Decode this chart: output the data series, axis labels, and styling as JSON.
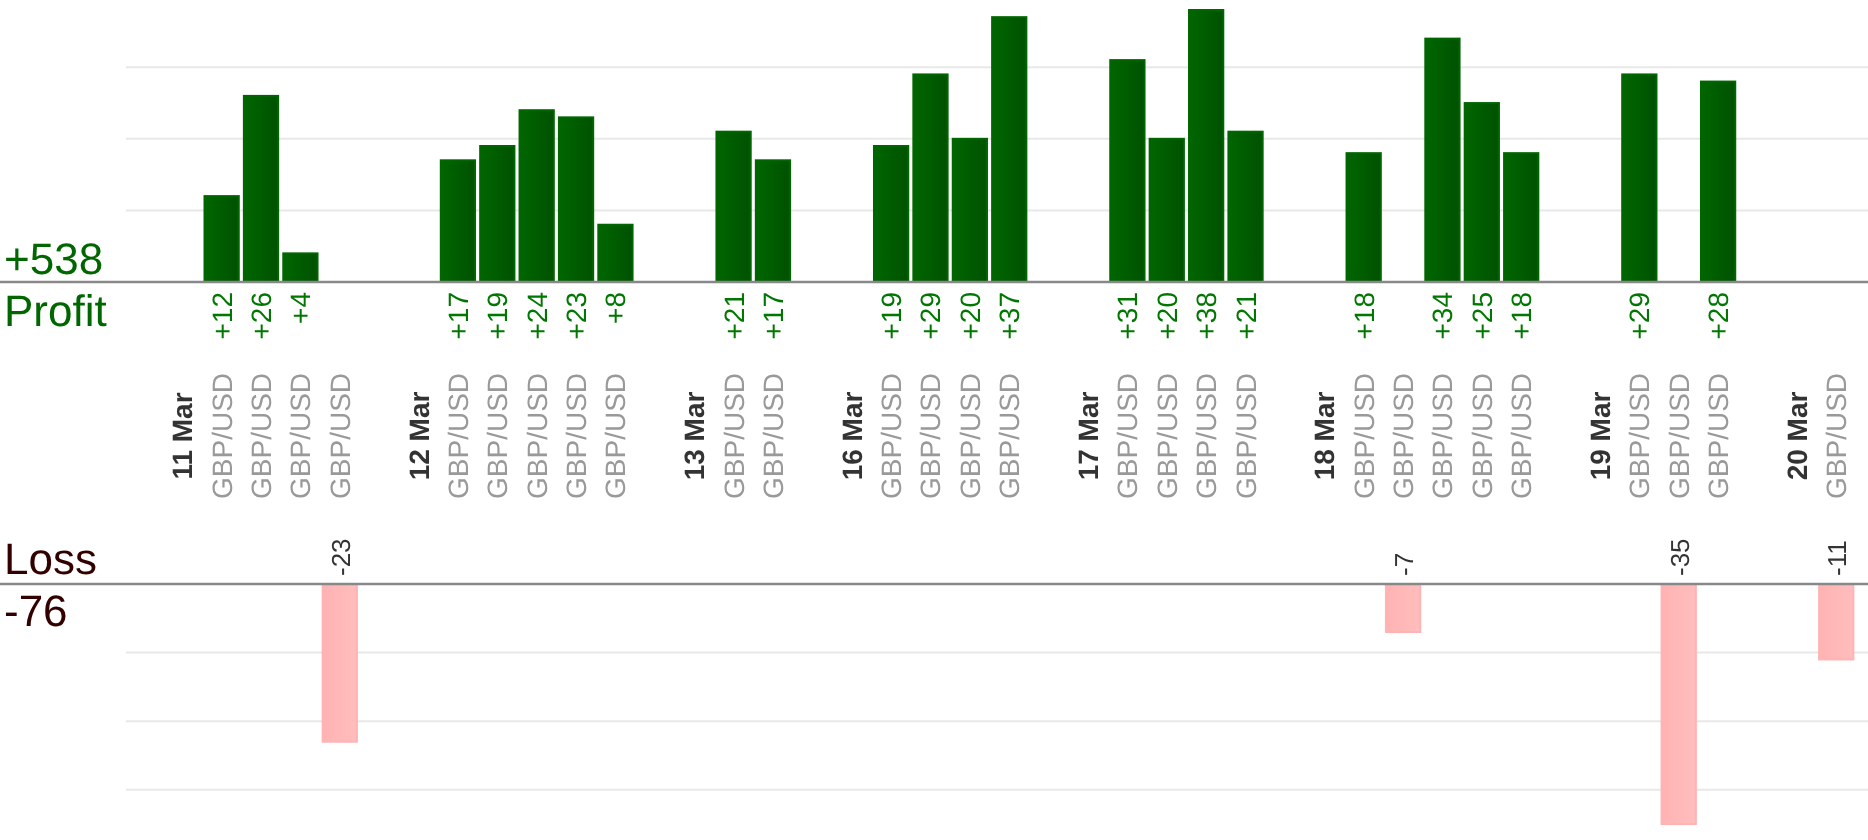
{
  "chart_data": [
    {
      "type": "bar",
      "ylabel": "Profit",
      "annotations": [
        "+538"
      ],
      "categories": [
        "11 Mar",
        "GBP/USD",
        "GBP/USD",
        "GBP/USD",
        "GBP/USD",
        null,
        "12 Mar",
        "GBP/USD",
        "GBP/USD",
        "GBP/USD",
        "GBP/USD",
        "GBP/USD",
        null,
        "13 Mar",
        "GBP/USD",
        "GBP/USD",
        null,
        "16 Mar",
        "GBP/USD",
        "GBP/USD",
        "GBP/USD",
        "GBP/USD",
        null,
        "17 Mar",
        "GBP/USD",
        "GBP/USD",
        "GBP/USD",
        "GBP/USD",
        null,
        "18 Mar",
        "GBP/USD",
        "GBP/USD",
        "GBP/USD",
        "GBP/USD",
        "GBP/USD",
        null,
        "19 Mar",
        "GBP/USD",
        "GBP/USD",
        "GBP/USD",
        null,
        "20 Mar",
        "GBP/USD"
      ],
      "values": [
        null,
        12,
        26,
        4,
        null,
        null,
        null,
        17,
        19,
        24,
        23,
        8,
        null,
        null,
        21,
        17,
        null,
        null,
        19,
        29,
        20,
        37,
        null,
        null,
        31,
        20,
        38,
        21,
        null,
        null,
        18,
        null,
        34,
        25,
        18,
        null,
        null,
        29,
        null,
        28,
        null,
        null,
        null
      ],
      "value_labels": [
        null,
        "+12",
        "+26",
        "+4",
        null,
        null,
        null,
        "+17",
        "+19",
        "+24",
        "+23",
        "+8",
        null,
        null,
        "+21",
        "+17",
        null,
        null,
        "+19",
        "+29",
        "+20",
        "+37",
        null,
        null,
        "+31",
        "+20",
        "+38",
        "+21",
        null,
        null,
        "+18",
        null,
        "+34",
        "+25",
        "+18",
        null,
        null,
        "+29",
        null,
        "+28",
        null,
        null,
        null
      ],
      "color": "#006600",
      "yticks": [
        {
          "value": 10,
          "label": null
        },
        {
          "value": 20,
          "label": null
        },
        {
          "value": 30,
          "label": null
        }
      ],
      "grid": "y"
    },
    {
      "type": "bar",
      "ylabel": "Loss",
      "annotations": [
        "-76"
      ],
      "values": [
        null,
        null,
        null,
        null,
        -23,
        null,
        null,
        null,
        null,
        null,
        null,
        null,
        null,
        null,
        null,
        null,
        null,
        null,
        null,
        null,
        null,
        null,
        null,
        null,
        null,
        null,
        null,
        null,
        null,
        null,
        null,
        -7,
        null,
        null,
        null,
        null,
        null,
        null,
        -35,
        null,
        null,
        null,
        -11
      ],
      "data_labels": true,
      "color": "#ffb3b3",
      "yticks": [
        {
          "value": -10,
          "label": null
        },
        {
          "value": -20,
          "label": null
        },
        {
          "value": -30,
          "label": null
        }
      ],
      "grid": "y"
    }
  ]
}
